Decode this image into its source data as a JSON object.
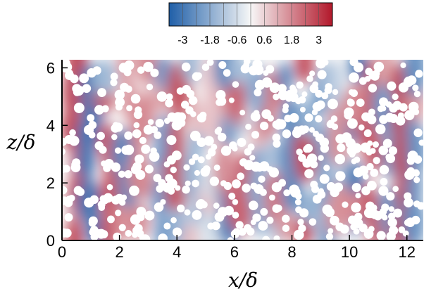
{
  "chart_data": {
    "type": "heatmap",
    "title": "",
    "xlabel": "x/δ",
    "ylabel": "z/δ",
    "xlim": [
      0,
      12.57
    ],
    "ylim": [
      0,
      6.28
    ],
    "x_ticks": [
      "0",
      "2",
      "4",
      "6",
      "8",
      "10",
      "12"
    ],
    "y_ticks": [
      "0",
      "2",
      "4",
      "6"
    ],
    "colorbar": {
      "range": [
        -3.6,
        3.6
      ],
      "tick_labels": [
        "-3",
        "-1.8",
        "-0.6",
        "0.6",
        "1.8",
        "3"
      ],
      "tick_values": [
        -3,
        -1.8,
        -0.6,
        0.6,
        1.8,
        3
      ],
      "colors": {
        "negative": "#1f5fa8",
        "mid": "#f7f7f7",
        "positive": "#b2182b"
      }
    },
    "particle_color": "#ffffff",
    "field_bands": [
      {
        "x": 0.5,
        "value": 2.8
      },
      {
        "x": 1.0,
        "value": -3.0
      },
      {
        "x": 1.6,
        "value": 2.5
      },
      {
        "x": 2.2,
        "value": -2.6
      },
      {
        "x": 2.8,
        "value": 1.8
      },
      {
        "x": 3.4,
        "value": -2.2
      },
      {
        "x": 4.0,
        "value": 2.6
      },
      {
        "x": 4.6,
        "value": -1.5
      },
      {
        "x": 5.2,
        "value": 0.8
      },
      {
        "x": 5.7,
        "value": -2.8
      },
      {
        "x": 6.2,
        "value": 2.4
      },
      {
        "x": 6.8,
        "value": -1.8
      },
      {
        "x": 7.3,
        "value": 2.0
      },
      {
        "x": 7.9,
        "value": -2.5
      },
      {
        "x": 8.5,
        "value": 2.7
      },
      {
        "x": 9.1,
        "value": -2.0
      },
      {
        "x": 9.6,
        "value": 1.6
      },
      {
        "x": 10.2,
        "value": -2.9
      },
      {
        "x": 10.8,
        "value": 2.5
      },
      {
        "x": 11.3,
        "value": -2.2
      },
      {
        "x": 11.9,
        "value": 2.8
      },
      {
        "x": 12.4,
        "value": -2.4
      }
    ]
  }
}
